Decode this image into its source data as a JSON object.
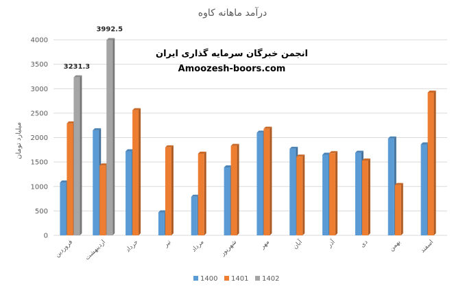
{
  "chart_data": {
    "type": "bar",
    "title": "درآمد ماهانه کاوه",
    "ylabel": "میلیارد تومان",
    "xlabel": "",
    "ylim": [
      0,
      4000
    ],
    "yticks": [
      0,
      500,
      1000,
      1500,
      2000,
      2500,
      3000,
      3500,
      4000
    ],
    "grid": true,
    "legend_position": "bottom",
    "categories": [
      "فروردین",
      "اردیبهشت",
      "خرداد",
      "تیر",
      "مرداد",
      "شهریور",
      "مهر",
      "آبان",
      "آذر",
      "دی",
      "بهمن",
      "اسفند"
    ],
    "series": [
      {
        "name": "1400",
        "color": "#5B9BD5",
        "values": [
          1080,
          2150,
          1720,
          470,
          790,
          1390,
          2100,
          1770,
          1650,
          1690,
          1980,
          1860
        ]
      },
      {
        "name": "1401",
        "color": "#ED7D31",
        "values": [
          2290,
          1430,
          2560,
          1800,
          1670,
          1830,
          2180,
          1610,
          1680,
          1530,
          1030,
          2920
        ]
      },
      {
        "name": "1402",
        "color": "#A5A5A5",
        "values": [
          3231.3,
          3992.5,
          null,
          null,
          null,
          null,
          null,
          null,
          null,
          null,
          null,
          null
        ]
      }
    ],
    "data_labels": [
      {
        "series": "1402",
        "category": "فروردین",
        "text": "3231.3"
      },
      {
        "series": "1402",
        "category": "اردیبهشت",
        "text": "3992.5"
      }
    ]
  },
  "watermark": {
    "line1": "انجمن خبرگان سرمایه گذاری ایران",
    "line2": "Amoozesh-boors.com"
  }
}
